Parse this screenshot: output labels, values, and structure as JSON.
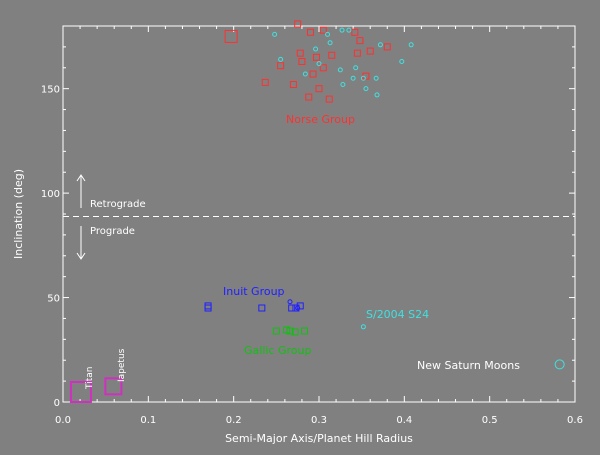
{
  "chart_data": {
    "type": "scatter",
    "xlabel": "Semi-Major Axis/Planet Hill Radius",
    "ylabel": "Inclination (deg)",
    "xlim": [
      0,
      0.6
    ],
    "ylim": [
      0,
      180
    ],
    "xticks": [
      "0.0",
      "0.1",
      "0.2",
      "0.3",
      "0.4",
      "0.5",
      "0.6"
    ],
    "yticks": [
      "0",
      "50",
      "100",
      "150"
    ],
    "reference_line": {
      "y": 90,
      "style": "dashed",
      "color": "#ffffff"
    },
    "annotations": {
      "retrograde": "Retrograde",
      "prograde": "Prograde",
      "norse_group": "Norse Group",
      "inuit_group": "Inuit Group",
      "gallic_group": "Gallic Group",
      "s2004": "S/2004 S24",
      "new_moons": "New Saturn Moons",
      "titan": "Titan",
      "iapetus": "Iapetus"
    },
    "colors": {
      "norse": "#ff3030",
      "new": "#40e0e0",
      "inuit": "#2020ff",
      "gallic": "#10c010",
      "large": "#d030c0",
      "axes": "#ffffff"
    },
    "series": [
      {
        "group": "norse",
        "marker": "square",
        "points": [
          [
            0.197,
            175,
            "big"
          ],
          [
            0.275,
            181
          ],
          [
            0.29,
            177
          ],
          [
            0.305,
            178
          ],
          [
            0.342,
            177
          ],
          [
            0.348,
            173
          ],
          [
            0.38,
            170
          ],
          [
            0.36,
            168
          ],
          [
            0.345,
            167
          ],
          [
            0.278,
            167
          ],
          [
            0.297,
            165
          ],
          [
            0.315,
            166
          ],
          [
            0.305,
            160
          ],
          [
            0.28,
            163
          ],
          [
            0.255,
            161
          ],
          [
            0.293,
            157
          ],
          [
            0.355,
            156
          ],
          [
            0.27,
            152
          ],
          [
            0.237,
            153
          ],
          [
            0.3,
            150
          ],
          [
            0.288,
            146
          ],
          [
            0.312,
            145
          ]
        ]
      },
      {
        "group": "new",
        "marker": "circle",
        "points": [
          [
            0.248,
            176
          ],
          [
            0.31,
            176
          ],
          [
            0.327,
            178
          ],
          [
            0.335,
            178
          ],
          [
            0.313,
            172
          ],
          [
            0.372,
            171
          ],
          [
            0.408,
            171
          ],
          [
            0.296,
            169
          ],
          [
            0.255,
            164
          ],
          [
            0.397,
            163
          ],
          [
            0.343,
            160
          ],
          [
            0.3,
            162
          ],
          [
            0.284,
            157
          ],
          [
            0.325,
            159
          ],
          [
            0.34,
            155
          ],
          [
            0.352,
            155
          ],
          [
            0.367,
            155
          ],
          [
            0.328,
            152
          ],
          [
            0.355,
            150
          ],
          [
            0.368,
            147
          ],
          [
            0.352,
            36
          ],
          [
            0.582,
            18,
            "big"
          ]
        ]
      },
      {
        "group": "inuit",
        "marker": "square",
        "points": [
          [
            0.17,
            46
          ],
          [
            0.17,
            45
          ],
          [
            0.233,
            45
          ],
          [
            0.268,
            45
          ],
          [
            0.273,
            45
          ],
          [
            0.278,
            46
          ]
        ]
      },
      {
        "group": "inuit",
        "marker": "circle",
        "points": [
          [
            0.266,
            48
          ],
          [
            0.275,
            45
          ]
        ]
      },
      {
        "group": "gallic",
        "marker": "square",
        "points": [
          [
            0.25,
            34
          ],
          [
            0.262,
            34.5
          ],
          [
            0.266,
            34
          ],
          [
            0.272,
            33.5
          ],
          [
            0.283,
            34
          ]
        ]
      },
      {
        "group": "large",
        "marker": "square",
        "points": [
          [
            0.021,
            0.3,
            "titan"
          ],
          [
            0.059,
            7.5,
            "iapetus"
          ]
        ]
      }
    ]
  }
}
